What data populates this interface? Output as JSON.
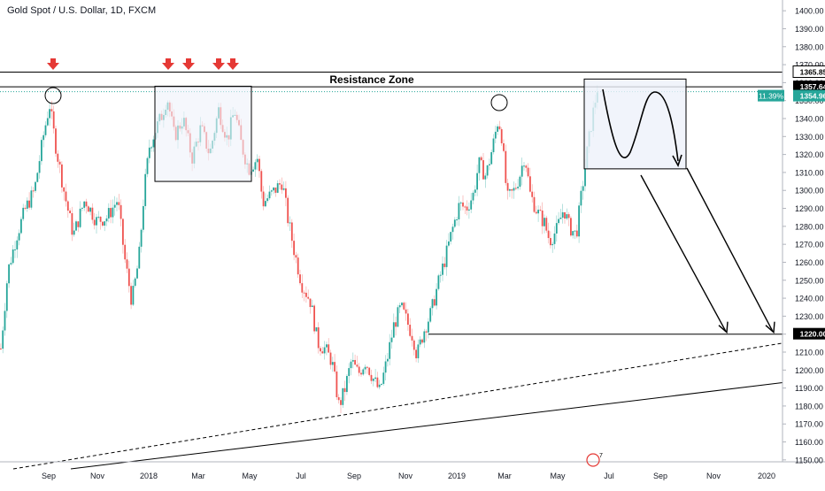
{
  "chart_data": {
    "type": "candlestick",
    "title": "Gold Spot / U.S. Dollar, 1D, FXCM",
    "x_labels": [
      "Sep",
      "Nov",
      "2018",
      "Mar",
      "May",
      "Jul",
      "Sep",
      "Nov",
      "2019",
      "Mar",
      "May",
      "Jul",
      "Sep",
      "Nov",
      "2020"
    ],
    "y_ticks": [
      1150,
      1160,
      1170,
      1180,
      1190,
      1200,
      1210,
      1220,
      1230,
      1240,
      1250,
      1260,
      1270,
      1280,
      1290,
      1300,
      1310,
      1320,
      1330,
      1340,
      1350,
      1360,
      1370,
      1380,
      1390,
      1400
    ],
    "ylim": [
      1145,
      1405
    ],
    "price_path": [
      [
        0,
        1212
      ],
      [
        8,
        1255
      ],
      [
        18,
        1275
      ],
      [
        28,
        1290
      ],
      [
        38,
        1300
      ],
      [
        48,
        1330
      ],
      [
        55,
        1348
      ],
      [
        62,
        1325
      ],
      [
        72,
        1298
      ],
      [
        82,
        1275
      ],
      [
        95,
        1295
      ],
      [
        108,
        1283
      ],
      [
        120,
        1285
      ],
      [
        132,
        1295
      ],
      [
        140,
        1262
      ],
      [
        148,
        1238
      ],
      [
        156,
        1262
      ],
      [
        162,
        1300
      ],
      [
        168,
        1325
      ],
      [
        176,
        1335
      ],
      [
        182,
        1342
      ],
      [
        188,
        1352
      ],
      [
        196,
        1330
      ],
      [
        206,
        1340
      ],
      [
        216,
        1318
      ],
      [
        226,
        1335
      ],
      [
        236,
        1320
      ],
      [
        246,
        1345
      ],
      [
        256,
        1328
      ],
      [
        264,
        1345
      ],
      [
        272,
        1325
      ],
      [
        280,
        1312
      ],
      [
        290,
        1318
      ],
      [
        296,
        1293
      ],
      [
        306,
        1298
      ],
      [
        318,
        1305
      ],
      [
        324,
        1285
      ],
      [
        332,
        1265
      ],
      [
        340,
        1248
      ],
      [
        350,
        1238
      ],
      [
        358,
        1215
      ],
      [
        366,
        1212
      ],
      [
        374,
        1205
      ],
      [
        382,
        1180
      ],
      [
        388,
        1188
      ],
      [
        396,
        1205
      ],
      [
        404,
        1198
      ],
      [
        412,
        1205
      ],
      [
        420,
        1196
      ],
      [
        428,
        1188
      ],
      [
        436,
        1205
      ],
      [
        444,
        1225
      ],
      [
        452,
        1235
      ],
      [
        458,
        1228
      ],
      [
        466,
        1218
      ],
      [
        470,
        1208
      ],
      [
        478,
        1222
      ],
      [
        486,
        1232
      ],
      [
        494,
        1248
      ],
      [
        502,
        1262
      ],
      [
        510,
        1278
      ],
      [
        518,
        1292
      ],
      [
        526,
        1290
      ],
      [
        534,
        1298
      ],
      [
        540,
        1315
      ],
      [
        548,
        1308
      ],
      [
        556,
        1325
      ],
      [
        562,
        1340
      ],
      [
        566,
        1330
      ],
      [
        572,
        1295
      ],
      [
        580,
        1300
      ],
      [
        586,
        1308
      ],
      [
        592,
        1320
      ],
      [
        598,
        1298
      ],
      [
        606,
        1288
      ],
      [
        614,
        1282
      ],
      [
        620,
        1272
      ],
      [
        628,
        1278
      ],
      [
        636,
        1290
      ],
      [
        642,
        1280
      ],
      [
        650,
        1275
      ],
      [
        656,
        1298
      ],
      [
        662,
        1320
      ],
      [
        668,
        1340
      ],
      [
        674,
        1357
      ]
    ],
    "ohlc_series": "Gold Spot / U.S. Dollar",
    "levels": [
      {
        "name": "resistance-top",
        "value": 1365.85,
        "label": "1365.85"
      },
      {
        "name": "resistance-bottom",
        "value": 1357.64,
        "label": "1357.64"
      },
      {
        "name": "current-price",
        "value": 1354.96,
        "label": "1354.96"
      },
      {
        "name": "support-target",
        "value": 1220.0,
        "label": "1220.00"
      }
    ],
    "change_badge": "11.39%",
    "annotations": {
      "zone_label": "Resistance Zone"
    },
    "colors": {
      "up": "#26a69a",
      "down": "#ef5350",
      "arrow": "#e53935",
      "zone_fill": "#eef1fa",
      "price_badge": "#26a69a",
      "axis_text": "#131722"
    },
    "watermark_count": "7"
  }
}
